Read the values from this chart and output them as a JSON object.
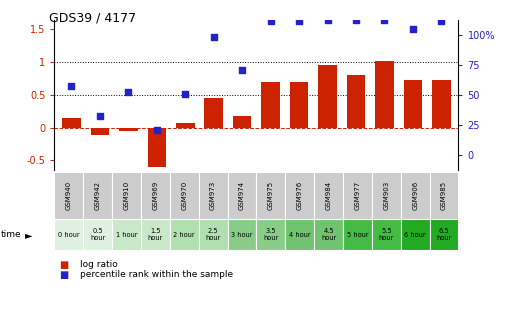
{
  "title": "GDS39 / 4177",
  "samples": [
    "GSM940",
    "GSM942",
    "GSM910",
    "GSM969",
    "GSM970",
    "GSM973",
    "GSM974",
    "GSM975",
    "GSM976",
    "GSM984",
    "GSM977",
    "GSM903",
    "GSM906",
    "GSM985"
  ],
  "time_labels": [
    "0 hour",
    "0.5\nhour",
    "1 hour",
    "1.5\nhour",
    "2 hour",
    "2.5\nhour",
    "3 hour",
    "3.5\nhour",
    "4 hour",
    "4.5\nhour",
    "5 hour",
    "5.5\nhour",
    "6 hour",
    "6.5\nhour"
  ],
  "log_ratio": [
    0.15,
    -0.12,
    -0.05,
    -0.6,
    0.07,
    0.45,
    0.18,
    0.7,
    0.7,
    0.95,
    0.8,
    1.01,
    0.72,
    0.72
  ],
  "percentile_pct": [
    57,
    32,
    52,
    21,
    51,
    98,
    71,
    111,
    111,
    112,
    112,
    112,
    105,
    111
  ],
  "bar_color": "#cc2200",
  "dot_color": "#2222cc",
  "dashed_line_color": "#cc2200",
  "bg_color": "#ffffff",
  "row1_bg": "#cccccc",
  "row2_bg_odd": "#ffffff",
  "row2_bg_even": "#aaddaa",
  "row2_bg_colors": [
    "#e0f0e0",
    "#e0f0e0",
    "#c8e8c8",
    "#c8e8c8",
    "#b0e0b0",
    "#b0e0b0",
    "#88cc88",
    "#88cc88",
    "#70c470",
    "#70c470",
    "#44bb44",
    "#44bb44",
    "#22aa22",
    "#22aa22"
  ],
  "ylim_left": [
    -0.65,
    1.65
  ],
  "ylim_right": [
    -12.5,
    112.5
  ],
  "yticks_left": [
    -0.5,
    0.0,
    0.5,
    1.0,
    1.5
  ],
  "yticks_right": [
    0,
    25,
    50,
    75,
    100
  ],
  "hlines_dotted": [
    0.5,
    1.0
  ],
  "legend_log": "log ratio",
  "legend_pct": "percentile rank within the sample"
}
